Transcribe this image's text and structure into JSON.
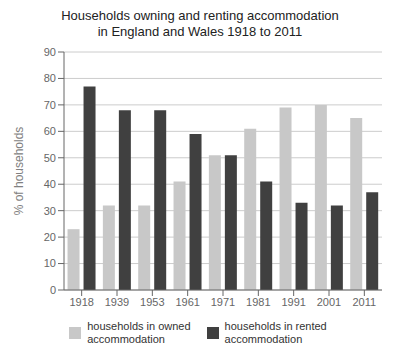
{
  "chart_data": {
    "type": "bar",
    "title": "Households owning and renting accommodation\nin England and Wales 1918 to 2011",
    "categories": [
      "1918",
      "1939",
      "1953",
      "1961",
      "1971",
      "1981",
      "1991",
      "2001",
      "2011"
    ],
    "series": [
      {
        "name": "households in owned\naccommodation",
        "color": "#c8c8c8",
        "values": [
          23,
          32,
          32,
          41,
          51,
          61,
          69,
          70,
          65
        ]
      },
      {
        "name": "households in rented\naccommodation",
        "color": "#404040",
        "values": [
          77,
          68,
          68,
          59,
          51,
          41,
          33,
          32,
          37
        ]
      }
    ],
    "ylabel": "% of households",
    "ylim": [
      0,
      90
    ],
    "yticks": [
      0,
      10,
      20,
      30,
      40,
      50,
      60,
      70,
      80,
      90
    ],
    "grid": true,
    "legend": "bottom"
  }
}
